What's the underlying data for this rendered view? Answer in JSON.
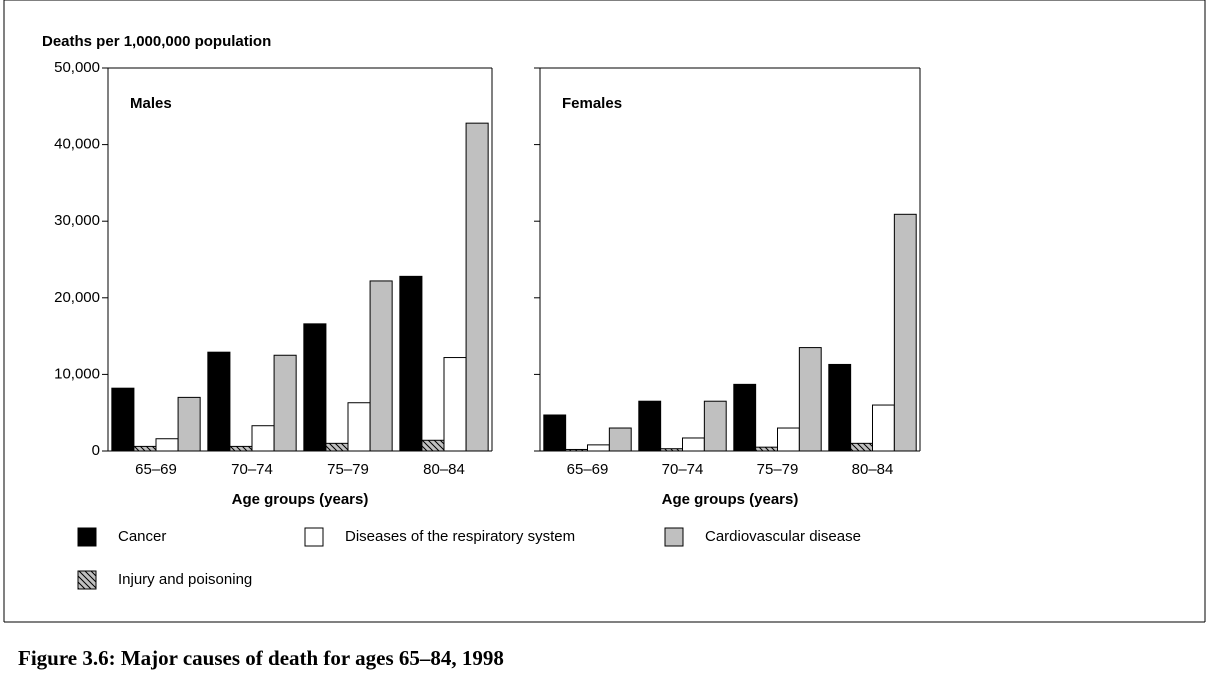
{
  "chart_data": [
    {
      "type": "bar",
      "title": "Males",
      "ylabel": "Deaths per 1,000,000 population",
      "xlabel": "Age groups (years)",
      "categories": [
        "65–69",
        "70–74",
        "75–79",
        "80–84"
      ],
      "series": [
        {
          "name": "Cancer",
          "color": "#000000",
          "values": [
            8200,
            12900,
            16600,
            22800
          ]
        },
        {
          "name": "Diseases of the respiratory system",
          "color": "#ffffff",
          "values": [
            1600,
            3300,
            6300,
            12200
          ]
        },
        {
          "name": "Cardiovascular disease",
          "color": "#c0c0c0",
          "values": [
            7000,
            12500,
            22200,
            42800
          ]
        },
        {
          "name": "Injury and poisoning",
          "color": "#c0c0c0",
          "pattern": "hatch",
          "values": [
            600,
            600,
            1000,
            1400
          ]
        }
      ],
      "ylim": [
        0,
        50000
      ],
      "yticks": [
        0,
        {
          "value": 10000,
          "label": "10,000"
        },
        {
          "value": 20000,
          "label": "20,000"
        },
        {
          "value": 30000,
          "label": "30,000"
        },
        {
          "value": 40000,
          "label": "40,000"
        },
        {
          "value": 50000,
          "label": "50,000"
        }
      ]
    },
    {
      "type": "bar",
      "title": "Females",
      "xlabel": "Age groups (years)",
      "categories": [
        "65–69",
        "70–74",
        "75–79",
        "80–84"
      ],
      "series": [
        {
          "color": "#000000",
          "values": [
            4700,
            6500,
            8700,
            11300
          ]
        },
        {
          "color": "#ffffff",
          "values": [
            800,
            1700,
            3000,
            6000
          ]
        },
        {
          "color": "#c0c0c0",
          "values": [
            3000,
            6500,
            13500,
            30900
          ]
        },
        {
          "color": "#c0c0c0",
          "pattern": "hatch",
          "values": [
            200,
            300,
            500,
            1000
          ]
        }
      ],
      "ylim": [
        0,
        50000
      ],
      "yticks": [
        0,
        10000,
        20000,
        30000,
        40000,
        50000
      ]
    }
  ],
  "caption": "Figure 3.6: Major causes of death for ages 65–84, 1998"
}
